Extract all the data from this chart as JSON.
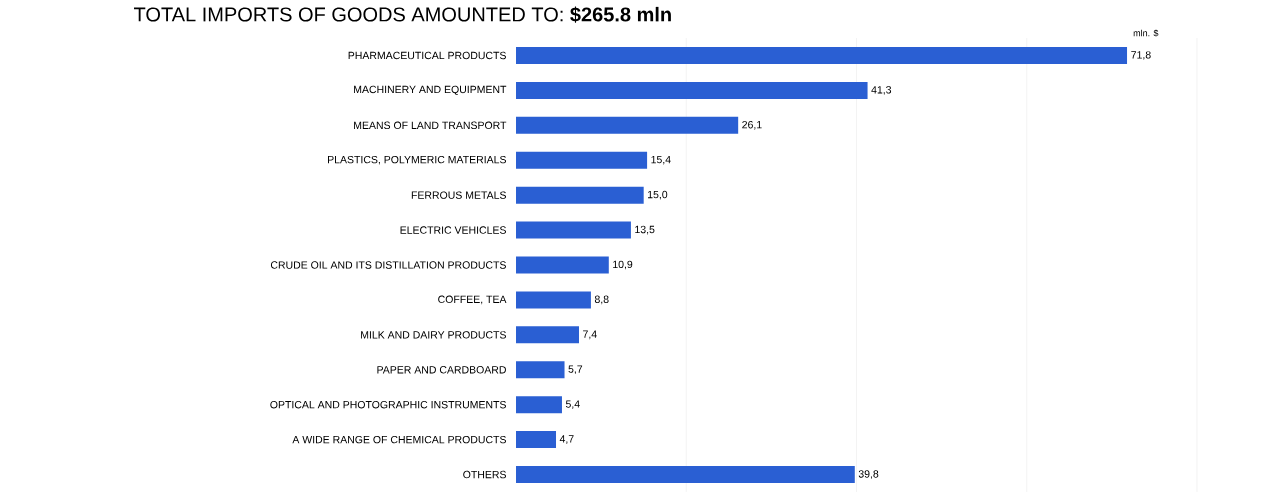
{
  "chart_data": {
    "type": "bar",
    "orientation": "horizontal",
    "title": "TOTAL IMPORTS OF GOODS AMOUNTED TO: **$265.8  mln**",
    "annotations": [
      "mln. $"
    ],
    "categories": [
      "PHARMACEUTICAL PRODUCTS",
      "MACHINERY AND EQUIPMENT",
      "MEANS OF LAND TRANSPORT",
      "PLASTICS, POLYMERIC MATERIALS",
      "FERROUS METALS",
      "ELECTRIC VEHICLES",
      "CRUDE OIL AND ITS DISTILLATION PRODUCTS",
      "COFFEE, TEA",
      "MILK AND DAIRY PRODUCTS",
      "PAPER AND CARDBOARD",
      "OPTICAL AND PHOTOGRAPHIC INSTRUMENTS",
      "A WIDE RANGE OF CHEMICAL PRODUCTS",
      "OTHERS"
    ],
    "values": [
      71.8,
      41.3,
      26.1,
      15.4,
      15.0,
      13.5,
      10.9,
      8.8,
      7.4,
      5.7,
      5.4,
      4.7,
      39.8
    ],
    "value_labels": [
      "71,8",
      "41,3",
      "26,1",
      "15,4",
      "15,0",
      "13,5",
      "10,9",
      "8,8",
      "7,4",
      "5,7",
      "5,4",
      "4,7",
      "39,8"
    ],
    "color": "#2a5fd3",
    "xlim": [
      0,
      80
    ],
    "xticks": [
      {
        "value": 20,
        "label": null
      },
      {
        "value": 40,
        "label": null
      },
      {
        "value": 60,
        "label": null
      },
      {
        "value": 80,
        "label": null
      }
    ],
    "grid": "x",
    "tick_labels": "y"
  }
}
